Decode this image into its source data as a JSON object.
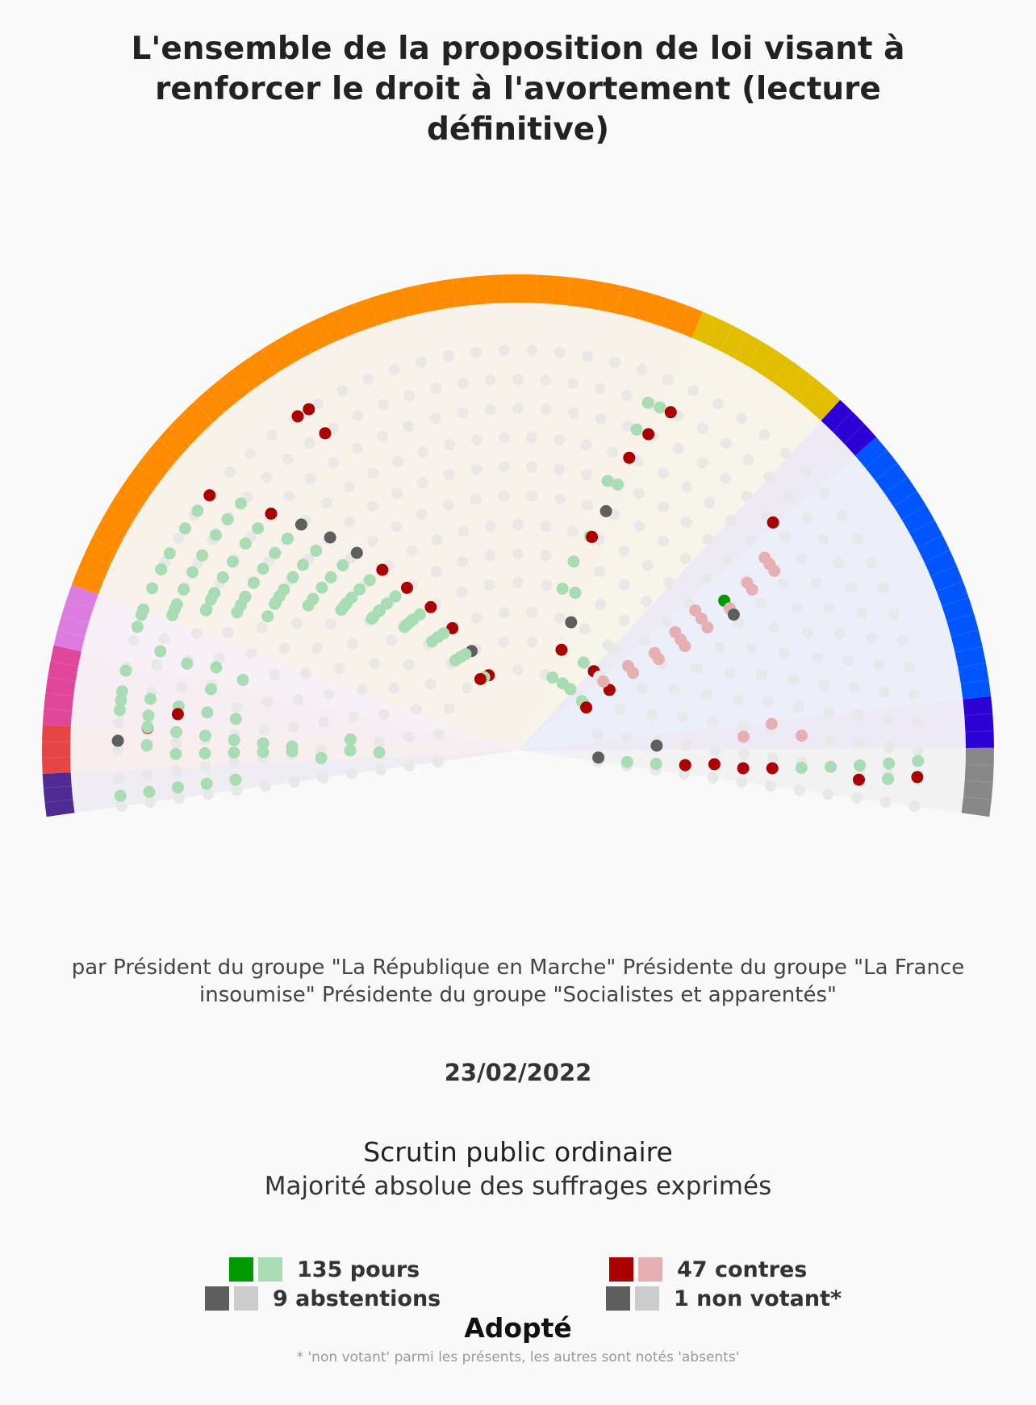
{
  "header": {
    "title": "L'ensemble de la proposition de loi visant à renforcer le droit à l'avortement (lecture définitive)"
  },
  "info": {
    "authors": "par Président du groupe \"La République en Marche\" Présidente du groupe \"La France insoumise\" Présidente du groupe \"Socialistes et apparentés\"",
    "date": "23/02/2022",
    "procedure": "Scrutin public ordinaire",
    "majority": "Majorité absolue des suffrages exprimés",
    "result": "Adopté",
    "footnote": "* 'non votant' parmi les présents, les autres sont notés 'absents'"
  },
  "colors": {
    "pour_strong": "#009900",
    "pour_light": "#a8dcb2",
    "contre_strong": "#aa0000",
    "contre_light": "#e6b0b3",
    "abstention_strong": "#5e5e5e",
    "abstention_light": "#cccccc",
    "absent": "#e8e8e8"
  },
  "legend": [
    {
      "label": "135 pours",
      "colors": [
        "#009900",
        "#a8dcb2"
      ]
    },
    {
      "label": "47 contres",
      "colors": [
        "#aa0000",
        "#e6b0b3"
      ]
    },
    {
      "label": "9 abstentions",
      "colors": [
        "#5e5e5e",
        "#cccccc"
      ]
    },
    {
      "label": "1 non votant*",
      "colors": [
        "#5e5e5e",
        "#cccccc"
      ]
    }
  ],
  "chart_data": {
    "type": "hemicycle",
    "totals": {
      "pour": 135,
      "contre": 47,
      "abstention": 9,
      "non_votant": 1
    },
    "groups": [
      {
        "color": "#4f2a92",
        "seats": 15
      },
      {
        "color": "#e64545",
        "seats": 17
      },
      {
        "color": "#e0469a",
        "seats": 28
      },
      {
        "color": "#dc7ce0",
        "seats": 22
      },
      {
        "color": "#ff8c00",
        "seats": 267
      },
      {
        "color": "#e2be00",
        "seats": 57
      },
      {
        "color": "#2c00d4",
        "seats": 18
      },
      {
        "color": "#0055ff",
        "seats": 100
      },
      {
        "color": "#2c00d4",
        "seats": 18
      },
      {
        "color": "#888888",
        "seats": 24
      }
    ],
    "angle_range_deg": [
      -8,
      188
    ],
    "rows": 12,
    "votes": [
      {
        "row": 11,
        "a": 171.5,
        "v": "p"
      },
      {
        "row": 10,
        "a": 172,
        "v": "p"
      },
      {
        "row": 9,
        "a": 172.6,
        "v": "p"
      },
      {
        "row": 8,
        "a": 173,
        "v": "p"
      },
      {
        "row": 7,
        "a": 173.6,
        "v": "p"
      },
      {
        "row": 11,
        "a": 178.6,
        "v": "a"
      },
      {
        "row": 11,
        "a": 172.8,
        "v": "p"
      },
      {
        "row": 11,
        "a": 174.2,
        "v": "p"
      },
      {
        "row": 10,
        "a": 174.6,
        "v": "p"
      },
      {
        "row": 10,
        "a": 176.5,
        "v": "c"
      },
      {
        "row": 10,
        "a": 176.4,
        "v": "p"
      },
      {
        "row": 9,
        "a": 176.9,
        "v": "p"
      },
      {
        "row": 8,
        "a": 177.3,
        "v": "p"
      },
      {
        "row": 7,
        "a": 177.9,
        "v": "p"
      },
      {
        "row": 6,
        "a": 178.4,
        "v": "p"
      },
      {
        "row": 5,
        "a": 179,
        "v": "p"
      },
      {
        "row": 3,
        "a": 180,
        "v": "p"
      },
      {
        "row": 2,
        "a": 180.8,
        "v": "p"
      },
      {
        "row": 4,
        "a": 182.2,
        "v": "p"
      },
      {
        "row": 3,
        "a": 176.2,
        "v": "p"
      },
      {
        "row": 11,
        "a": 168.5,
        "v": "p"
      },
      {
        "row": 10,
        "a": 164.5,
        "v": "p"
      },
      {
        "row": 9,
        "a": 165.3,
        "v": "p"
      },
      {
        "row": 8,
        "a": 164.6,
        "v": "p"
      },
      {
        "row": 7,
        "a": 165.6,
        "v": "p"
      },
      {
        "row": 8,
        "a": 168.7,
        "v": "p"
      },
      {
        "row": 11,
        "a": 162,
        "v": "p"
      },
      {
        "row": 11,
        "a": 160.2,
        "v": "p"
      },
      {
        "row": 10,
        "a": 158.6,
        "v": "p"
      },
      {
        "row": 10,
        "a": 156.8,
        "v": "p"
      },
      {
        "row": 9,
        "a": 155.6,
        "v": "p"
      },
      {
        "row": 9,
        "a": 153.8,
        "v": "p"
      },
      {
        "row": 8,
        "a": 152.3,
        "v": "p"
      },
      {
        "row": 8,
        "a": 150.6,
        "v": "p"
      },
      {
        "row": 7,
        "a": 148.9,
        "v": "p"
      },
      {
        "row": 7,
        "a": 147.1,
        "v": "p"
      },
      {
        "row": 6,
        "a": 145.3,
        "v": "p"
      },
      {
        "row": 6,
        "a": 143.5,
        "v": "p"
      },
      {
        "row": 5,
        "a": 141.5,
        "v": "p"
      },
      {
        "row": 5,
        "a": 139.4,
        "v": "p"
      },
      {
        "row": 4,
        "a": 137.3,
        "v": "p"
      },
      {
        "row": 4,
        "a": 135,
        "v": "p"
      },
      {
        "row": 3,
        "a": 132.6,
        "v": "p"
      },
      {
        "row": 3,
        "a": 130.1,
        "v": "p"
      },
      {
        "row": 11,
        "a": 150.5,
        "v": "p"
      },
      {
        "row": 10,
        "a": 148.3,
        "v": "p"
      },
      {
        "row": 9,
        "a": 146.5,
        "v": "p"
      },
      {
        "row": 8,
        "a": 144.5,
        "v": "p"
      },
      {
        "row": 7,
        "a": 142.4,
        "v": "p"
      },
      {
        "row": 6,
        "a": 140.3,
        "v": "p"
      },
      {
        "row": 5,
        "a": 137.4,
        "v": "p"
      },
      {
        "row": 4,
        "a": 134.7,
        "v": "p"
      },
      {
        "row": 3,
        "a": 131.7,
        "v": "p"
      },
      {
        "row": 2,
        "a": 128.2,
        "v": "p"
      },
      {
        "row": 1,
        "a": 124.8,
        "v": "p"
      },
      {
        "row": 11,
        "a": 140.4,
        "v": "c"
      },
      {
        "row": 10,
        "a": 138.3,
        "v": "p"
      },
      {
        "row": 9,
        "a": 136.2,
        "v": "c"
      },
      {
        "row": 8,
        "a": 133.8,
        "v": "a"
      },
      {
        "row": 7,
        "a": 131.4,
        "v": "a"
      },
      {
        "row": 6,
        "a": 129.2,
        "v": "a"
      },
      {
        "row": 5,
        "a": 126.9,
        "v": "c"
      },
      {
        "row": 4,
        "a": 124.3,
        "v": "c"
      },
      {
        "row": 3,
        "a": 121.3,
        "v": "c"
      },
      {
        "row": 2,
        "a": 118.2,
        "v": "c"
      },
      {
        "row": 1,
        "a": 115,
        "v": "a"
      },
      {
        "row": 0,
        "a": 111.3,
        "v": "c"
      },
      {
        "row": 11,
        "a": 143.2,
        "v": "p"
      },
      {
        "row": 10,
        "a": 141.5,
        "v": "p"
      },
      {
        "row": 9,
        "a": 139.5,
        "v": "p"
      },
      {
        "row": 8,
        "a": 137.4,
        "v": "p"
      },
      {
        "row": 7,
        "a": 135.3,
        "v": "p"
      },
      {
        "row": 6,
        "a": 133.4,
        "v": "p"
      },
      {
        "row": 5,
        "a": 131,
        "v": "p"
      },
      {
        "row": 4,
        "a": 128.5,
        "v": "p"
      },
      {
        "row": 3,
        "a": 125.8,
        "v": "p"
      },
      {
        "row": 2,
        "a": 122.4,
        "v": "p"
      },
      {
        "row": 1,
        "a": 118.6,
        "v": "p"
      },
      {
        "row": 0,
        "a": 114.8,
        "v": "p"
      },
      {
        "row": 11,
        "a": 146.3,
        "v": "p"
      },
      {
        "row": 10,
        "a": 144.5,
        "v": "p"
      },
      {
        "row": 9,
        "a": 142.8,
        "v": "p"
      },
      {
        "row": 8,
        "a": 140.9,
        "v": "p"
      },
      {
        "row": 7,
        "a": 139.2,
        "v": "p"
      },
      {
        "row": 6,
        "a": 137.2,
        "v": "p"
      },
      {
        "row": 5,
        "a": 134.5,
        "v": "p"
      },
      {
        "row": 4,
        "a": 131.8,
        "v": "p"
      },
      {
        "row": 3,
        "a": 128.7,
        "v": "p"
      },
      {
        "row": 2,
        "a": 125.3,
        "v": "p"
      },
      {
        "row": 1,
        "a": 121.6,
        "v": "p"
      },
      {
        "row": 0,
        "a": 117.8,
        "v": "c"
      },
      {
        "row": 11,
        "a": 153.1,
        "v": "p"
      },
      {
        "row": 10,
        "a": 151.3,
        "v": "p"
      },
      {
        "row": 9,
        "a": 149.6,
        "v": "p"
      },
      {
        "row": 8,
        "a": 147.6,
        "v": "p"
      },
      {
        "row": 7,
        "a": 145.5,
        "v": "p"
      },
      {
        "row": 6,
        "a": 143.6,
        "v": "p"
      },
      {
        "row": 5,
        "a": 140.4,
        "v": "p"
      },
      {
        "row": 4,
        "a": 137.9,
        "v": "p"
      },
      {
        "row": 11,
        "a": 156.1,
        "v": "p"
      },
      {
        "row": 10,
        "a": 154.3,
        "v": "p"
      },
      {
        "row": 9,
        "a": 152.6,
        "v": "p"
      },
      {
        "row": 8,
        "a": 150.7,
        "v": "p"
      },
      {
        "row": 7,
        "a": 148.6,
        "v": "p"
      },
      {
        "row": 11,
        "a": 159.4,
        "v": "p"
      },
      {
        "row": 10,
        "a": 157.6,
        "v": "p"
      },
      {
        "row": 9,
        "a": 155.8,
        "v": "p"
      },
      {
        "row": 8,
        "a": 153.8,
        "v": "p"
      },
      {
        "row": 7,
        "a": 151.8,
        "v": "p"
      },
      {
        "row": 11,
        "a": 186.5,
        "v": "p"
      },
      {
        "row": 10,
        "a": 186.4,
        "v": "p"
      },
      {
        "row": 9,
        "a": 186.2,
        "v": "p"
      },
      {
        "row": 8,
        "a": 186.1,
        "v": "p"
      },
      {
        "row": 7,
        "a": 185.9,
        "v": "p"
      },
      {
        "row": 9,
        "a": 180.6,
        "v": "p"
      },
      {
        "row": 8,
        "a": 180.5,
        "v": "p"
      },
      {
        "row": 7,
        "a": 180.4,
        "v": "p"
      },
      {
        "row": 6,
        "a": 180.3,
        "v": "p"
      },
      {
        "row": 5,
        "a": 180.2,
        "v": "p"
      },
      {
        "row": 10,
        "a": 179.2,
        "v": "p"
      },
      {
        "row": 9,
        "a": 173.9,
        "v": "c"
      },
      {
        "row": 11,
        "a": 121.5,
        "v": "c"
      },
      {
        "row": 11,
        "a": 123.4,
        "v": "c"
      },
      {
        "row": 10,
        "a": 121.3,
        "v": "c"
      },
      {
        "row": 10,
        "a": 69.5,
        "v": "p"
      },
      {
        "row": 10,
        "a": 67.5,
        "v": "p"
      },
      {
        "row": 10,
        "a": 65.7,
        "v": "c"
      },
      {
        "row": 9,
        "a": 69.7,
        "v": "p"
      },
      {
        "row": 9,
        "a": 67.6,
        "v": "c"
      },
      {
        "row": 8,
        "a": 69.2,
        "v": "c"
      },
      {
        "row": 7,
        "a": 71.6,
        "v": "p"
      },
      {
        "row": 7,
        "a": 69.4,
        "v": "p"
      },
      {
        "row": 6,
        "a": 69.8,
        "v": "a"
      },
      {
        "row": 5,
        "a": 71.4,
        "v": "p"
      },
      {
        "row": 5,
        "a": 70.9,
        "v": "c"
      },
      {
        "row": 4,
        "a": 73.6,
        "v": "p"
      },
      {
        "row": 3,
        "a": 70,
        "v": "p"
      },
      {
        "row": 3,
        "a": 74.6,
        "v": "p"
      },
      {
        "row": 2,
        "a": 67.5,
        "v": "a"
      },
      {
        "row": 1,
        "a": 66.6,
        "v": "c"
      },
      {
        "row": 0,
        "a": 64.7,
        "v": "p"
      },
      {
        "row": 0,
        "a": 37.7,
        "v": "p"
      },
      {
        "row": 0,
        "a": 34.8,
        "v": "p"
      },
      {
        "row": 1,
        "a": 46.3,
        "v": "c"
      },
      {
        "row": 1,
        "a": 33.5,
        "v": "c"
      },
      {
        "row": 0,
        "a": 32.2,
        "v": "c"
      },
      {
        "row": 9,
        "a": 41.8,
        "v": "c"
      },
      {
        "row": 8,
        "a": 38,
        "v": "cl"
      },
      {
        "row": 8,
        "a": 36.5,
        "v": "cl"
      },
      {
        "row": 8,
        "a": 35,
        "v": "cl"
      },
      {
        "row": 7,
        "a": 36.2,
        "v": "cl"
      },
      {
        "row": 7,
        "a": 34.5,
        "v": "cl"
      },
      {
        "row": 6,
        "a": 36,
        "v": "P"
      },
      {
        "row": 6,
        "a": 33.9,
        "v": "cl"
      },
      {
        "row": 6,
        "a": 32.2,
        "v": "a"
      },
      {
        "row": 5,
        "a": 38.3,
        "v": "cl"
      },
      {
        "row": 5,
        "a": 35.7,
        "v": "cl"
      },
      {
        "row": 5,
        "a": 33,
        "v": "cl"
      },
      {
        "row": 4,
        "a": 37,
        "v": "cl"
      },
      {
        "row": 4,
        "a": 34.3,
        "v": "cl"
      },
      {
        "row": 4,
        "a": 32,
        "v": "cl"
      },
      {
        "row": 3,
        "a": 35.5,
        "v": "cl"
      },
      {
        "row": 3,
        "a": 33,
        "v": "cl"
      },
      {
        "row": 2,
        "a": 37.5,
        "v": "cl"
      },
      {
        "row": 2,
        "a": 34,
        "v": "cl"
      },
      {
        "row": 1,
        "a": 42.3,
        "v": "pl"
      },
      {
        "row": 1,
        "a": 39,
        "v": "cl"
      },
      {
        "row": 0,
        "a": 49.4,
        "v": "p"
      },
      {
        "row": 2,
        "a": 47,
        "v": "pl"
      },
      {
        "row": 0,
        "a": 56.4,
        "v": "p"
      },
      {
        "row": 1,
        "a": 53.3,
        "v": "p"
      },
      {
        "row": 6,
        "a": 6,
        "v": "cl"
      },
      {
        "row": 7,
        "a": 3,
        "v": "cl"
      },
      {
        "row": 5,
        "a": 3.5,
        "v": "cl"
      },
      {
        "row": 2,
        "a": 2,
        "v": "a"
      },
      {
        "row": 11,
        "a": -1.5,
        "v": "p"
      },
      {
        "row": 10,
        "a": -2,
        "v": "p"
      },
      {
        "row": 9,
        "a": -2.5,
        "v": "p"
      },
      {
        "row": 8,
        "a": -3,
        "v": "p"
      },
      {
        "row": 7,
        "a": -3.5,
        "v": "p"
      },
      {
        "row": 6,
        "a": -4,
        "v": "c"
      },
      {
        "row": 5,
        "a": -4.5,
        "v": "c"
      },
      {
        "row": 4,
        "a": -4,
        "v": "c"
      },
      {
        "row": 3,
        "a": -5,
        "v": "c"
      },
      {
        "row": 2,
        "a": -5.5,
        "v": "p"
      },
      {
        "row": 1,
        "a": -6,
        "v": "p"
      },
      {
        "row": 11,
        "a": -3.8,
        "v": "c"
      },
      {
        "row": 10,
        "a": -4.4,
        "v": "p"
      },
      {
        "row": 9,
        "a": -4.9,
        "v": "c"
      },
      {
        "row": 0,
        "a": -5,
        "v": "a"
      }
    ]
  }
}
